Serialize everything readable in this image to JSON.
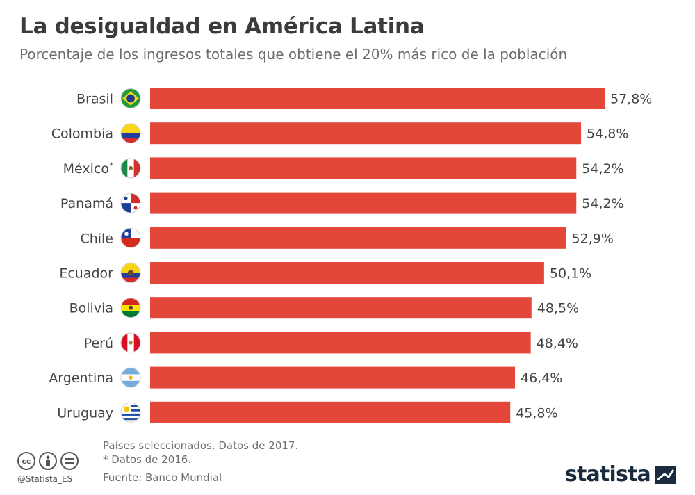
{
  "title": "La desigualdad en América Latina",
  "subtitle": "Porcentaje de los ingresos totales que obtiene el 20% más rico de la población",
  "notes": {
    "line1": "Países seleccionados. Datos de 2017.",
    "line2": "* Datos de 2016."
  },
  "source": "Fuente: Banco Mundial",
  "handle": "@Statista_ES",
  "brand": "statista",
  "colors": {
    "bar": "#e2473a",
    "label": "#444444",
    "value": "#444444"
  },
  "chart_data": {
    "type": "bar",
    "orientation": "horizontal",
    "title": "La desigualdad en América Latina",
    "subtitle": "Porcentaje de los ingresos totales que obtiene el 20% más rico de la población",
    "categories": [
      "Brasil",
      "Colombia",
      "México",
      "Panamá",
      "Chile",
      "Ecuador",
      "Bolivia",
      "Perú",
      "Argentina",
      "Uruguay"
    ],
    "category_suffix": [
      "",
      "",
      "*",
      "",
      "",
      "",
      "",
      "",
      "",
      ""
    ],
    "flags": [
      "brazil-flag-icon",
      "colombia-flag-icon",
      "mexico-flag-icon",
      "panama-flag-icon",
      "chile-flag-icon",
      "ecuador-flag-icon",
      "bolivia-flag-icon",
      "peru-flag-icon",
      "argentina-flag-icon",
      "uruguay-flag-icon"
    ],
    "values": [
      57.8,
      54.8,
      54.2,
      54.2,
      52.9,
      50.1,
      48.5,
      48.4,
      46.4,
      45.8
    ],
    "value_labels": [
      "57,8%",
      "54,8%",
      "54,2%",
      "54,2%",
      "52,9%",
      "50,1%",
      "48,5%",
      "48,4%",
      "46,4%",
      "45,8%"
    ],
    "xlim": [
      0,
      57.8
    ],
    "grid": false,
    "legend": "none"
  }
}
